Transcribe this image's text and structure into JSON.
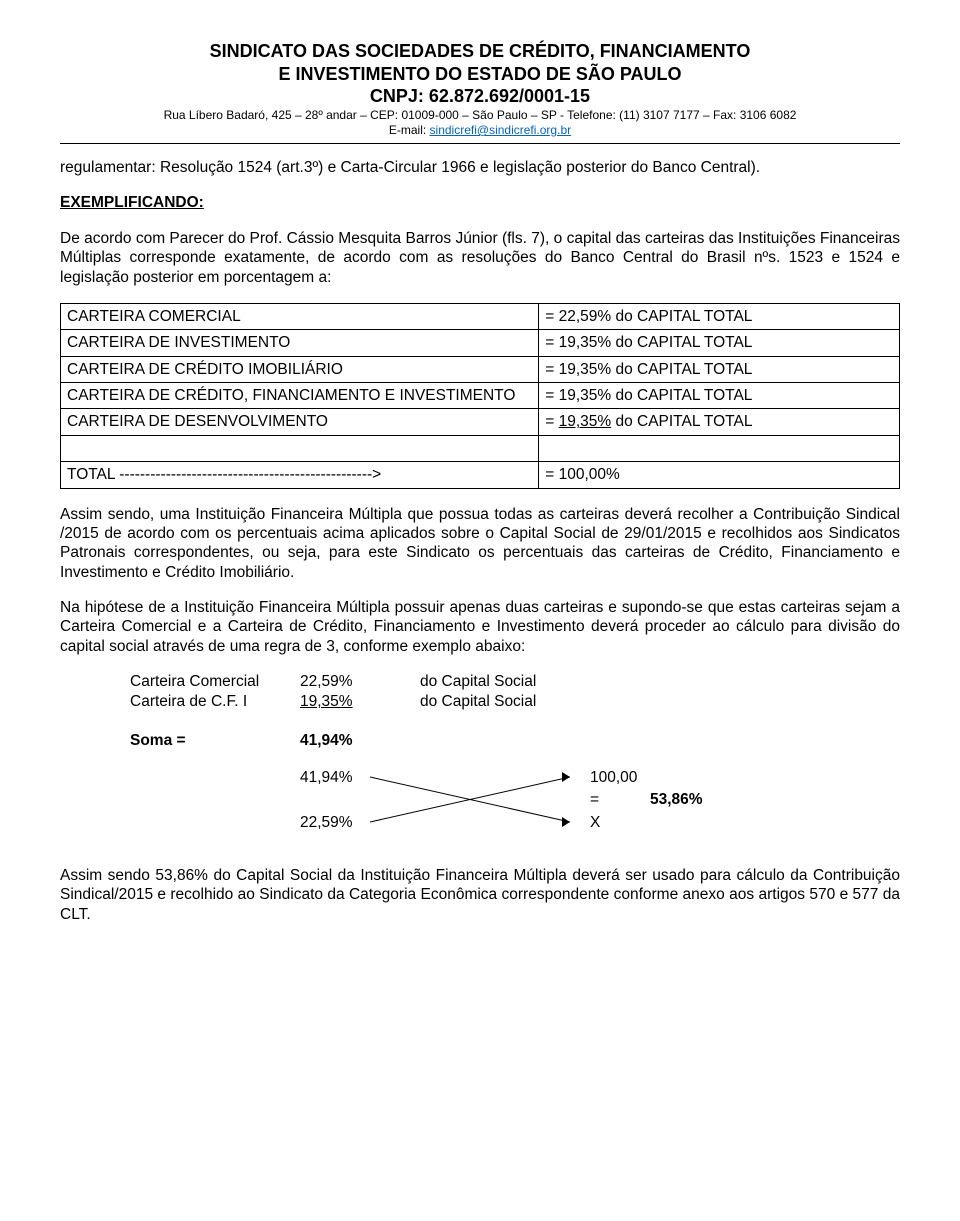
{
  "header": {
    "title_line1": "SINDICATO DAS SOCIEDADES DE CRÉDITO, FINANCIAMENTO",
    "title_line2": "E INVESTIMENTO DO ESTADO DE SÃO PAULO",
    "cnpj": "CNPJ: 62.872.692/0001-15",
    "address": "Rua Líbero Badaró, 425 – 28º andar – CEP: 01009-000 – São Paulo – SP - Telefone: (11) 3107 7177 – Fax: 3106 6082",
    "email_prefix": "E-mail: ",
    "email": "sindicrefi@sindicrefi.org.br"
  },
  "para1": "regulamentar: Resolução 1524 (art.3º) e Carta-Circular 1966 e legislação posterior do Banco Central).",
  "exemplificando": "EXEMPLIFICANDO:",
  "para2": "De acordo com Parecer do Prof. Cássio Mesquita Barros Júnior (fls. 7), o capital das carteiras das Instituições Financeiras Múltiplas corresponde exatamente, de acordo com as resoluções do Banco Central do Brasil nºs. 1523 e 1524 e legislação posterior em porcentagem a:",
  "table": {
    "rows": [
      {
        "l": "CARTEIRA COMERCIAL",
        "r": "= 22,59% do CAPITAL TOTAL",
        "ul": false
      },
      {
        "l": "CARTEIRA DE INVESTIMENTO",
        "r": "= 19,35% do CAPITAL TOTAL",
        "ul": false
      },
      {
        "l": "CARTEIRA DE CRÉDITO IMOBILIÁRIO",
        "r": "= 19,35% do CAPITAL TOTAL",
        "ul": false
      },
      {
        "l": "CARTEIRA DE CRÉDITO, FINANCIAMENTO E INVESTIMENTO",
        "r": "= 19,35% do CAPITAL TOTAL",
        "ul": false
      },
      {
        "l": "CARTEIRA DE DESENVOLVIMENTO",
        "r_prefix": "= ",
        "r_ul": "19,35%",
        "r_suffix": " do CAPITAL TOTAL",
        "ul": true
      },
      {
        "l": "",
        "r": "",
        "ul": false
      },
      {
        "l": "TOTAL ------------------------------------------------->",
        "r": "= 100,00%",
        "ul": false
      }
    ]
  },
  "para3": "Assim sendo, uma Instituição Financeira Múltipla que possua todas as carteiras deverá recolher a Contribuição Sindical /2015 de acordo com os percentuais acima aplicados sobre o Capital Social de 29/01/2015 e recolhidos aos Sindicatos Patronais correspondentes, ou seja, para este Sindicato os percentuais das carteiras de Crédito, Financiamento e Investimento e Crédito Imobiliário.",
  "para4": "Na hipótese de a Instituição Financeira Múltipla possuir apenas duas carteiras e supondo-se que estas carteiras sejam a Carteira Comercial e a Carteira de Crédito, Financiamento e Investimento deverá proceder ao cálculo para divisão do capital social através de uma regra de 3, conforme exemplo abaixo:",
  "example": {
    "r1": {
      "c1": "Carteira Comercial",
      "c2": "22,59%",
      "c3": "do Capital Social",
      "ul": false
    },
    "r2": {
      "c1": "Carteira de C.F. I",
      "c2": "19,35%",
      "c3": "do Capital Social",
      "ul": true
    }
  },
  "soma": {
    "label": "Soma  =",
    "value": "41,94%"
  },
  "cross": {
    "tl": "41,94%",
    "bl": "22,59%",
    "tr": "100,00",
    "eq": "=",
    "result": "53,86%",
    "br": "X"
  },
  "para5": "Assim sendo 53,86% do Capital Social da Instituição Financeira Múltipla deverá ser usado para cálculo da Contribuição Sindical/2015 e recolhido ao Sindicato da Categoria Econômica correspondente conforme anexo aos artigos 570 e 577 da CLT."
}
